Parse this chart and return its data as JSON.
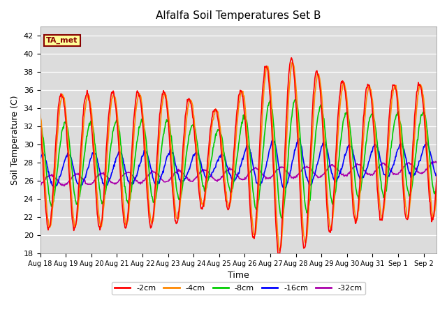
{
  "title": "Alfalfa Soil Temperatures Set B",
  "xlabel": "Time",
  "ylabel": "Soil Temperature (C)",
  "ylim": [
    18,
    43
  ],
  "xlim": [
    0,
    15.5
  ],
  "bg_color": "#dcdcdc",
  "plot_bg": "#dcdcdc",
  "grid_color": "white",
  "series": [
    {
      "label": "-2cm",
      "color": "#ff0000"
    },
    {
      "label": "-4cm",
      "color": "#ff8800"
    },
    {
      "label": "-8cm",
      "color": "#00cc00"
    },
    {
      "label": "-16cm",
      "color": "#0000ff"
    },
    {
      "label": "-32cm",
      "color": "#aa00aa"
    }
  ],
  "xtick_labels": [
    "Aug 18",
    "Aug 19",
    "Aug 20",
    "Aug 21",
    "Aug 22",
    "Aug 23",
    "Aug 24",
    "Aug 25",
    "Aug 26",
    "Aug 27",
    "Aug 28",
    "Aug 29",
    "Aug 30",
    "Aug 31",
    "Sep 1",
    "Sep 2"
  ],
  "ytick_labels": [
    18,
    20,
    22,
    24,
    26,
    28,
    30,
    32,
    34,
    36,
    38,
    40,
    42
  ],
  "ta_met_box_color": "#ffff99",
  "ta_met_text_color": "#880000",
  "ta_met_border_color": "#880000",
  "line_width": 1.2
}
